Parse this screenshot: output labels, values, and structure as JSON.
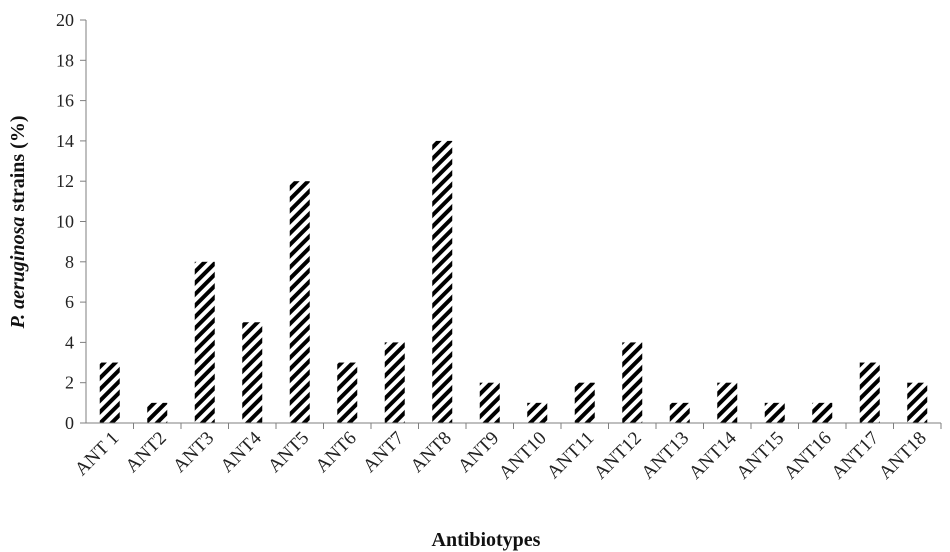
{
  "chart_data": {
    "type": "bar",
    "categories": [
      "ANT 1",
      "ANT2",
      "ANT3",
      "ANT4",
      "ANT5",
      "ANT6",
      "ANT7",
      "ANT8",
      "ANT9",
      "ANT10",
      "ANT11",
      "ANT12",
      "ANT13",
      "ANT14",
      "ANT15",
      "ANT16",
      "ANT17",
      "ANT18"
    ],
    "values": [
      3,
      1,
      8,
      5,
      12,
      3,
      4,
      14,
      2,
      1,
      2,
      4,
      1,
      2,
      1,
      1,
      3,
      2
    ],
    "xlabel": "Antibiotypes",
    "ylabel_italic": "P. aeruginosa",
    "ylabel_rest": " strains (%)",
    "ylim": [
      0,
      20
    ],
    "yticks": [
      0,
      2,
      4,
      6,
      8,
      10,
      12,
      14,
      16,
      18,
      20
    ],
    "bar_fill": "diagonal-hatch",
    "bar_color": "#000000",
    "grid": false,
    "legend": "none"
  }
}
